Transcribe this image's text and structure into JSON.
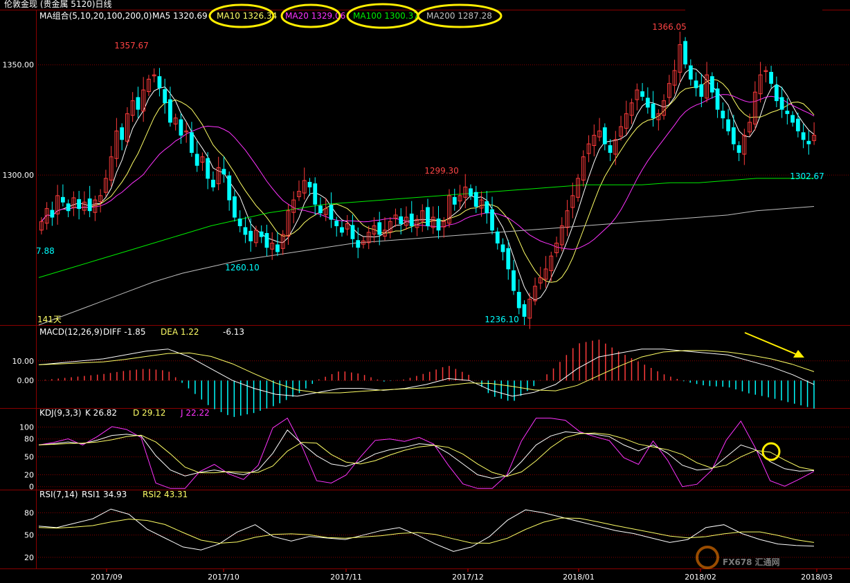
{
  "header": {
    "title": "伦敦金现 (贵金属 5120)日线"
  },
  "legend": {
    "ma_group": "MA组合(5,10,20,100,200,0)",
    "ma5": "MA5 1320.69",
    "ma10": "MA10 1326.34",
    "ma20": "MA20 1329.06",
    "ma100": "MA100 1300.37",
    "ma200": "MA200 1287.28",
    "days": "141天"
  },
  "macd_legend": {
    "name": "MACD(12,26,9)",
    "diff": "DIFF  -1.85",
    "dea": "DEA  1.22",
    "macd": "-6.13"
  },
  "kdj_legend": {
    "name": "KDJ(9,3,3)",
    "k": "K  26.82",
    "d": "D  29.12",
    "j": "J  22.22"
  },
  "rsi_legend": {
    "name": "RSI(7,14)",
    "rsi1": "RSI1  34.93",
    "rsi2": "RSI2  43.31"
  },
  "watermark": "FX678 汇通网",
  "colors": {
    "up": "#ff3b3b",
    "down": "#00ffff",
    "ma5": "#ffffff",
    "ma10": "#ffff66",
    "ma20": "#ff33ff",
    "ma100": "#00ee00",
    "ma200": "#c0c0c0",
    "highlight": "#ffee00",
    "grid": "#8b0000"
  },
  "chart_data": {
    "type": "candlestick",
    "x_ticks": [
      "2017/09",
      "2017/10",
      "2017/11",
      "2017/12",
      "2018/01",
      "2018/02",
      "2018/03"
    ],
    "price_axis": {
      "ticks": [
        "1350.00",
        "1300.00"
      ],
      "ylim": [
        1232,
        1375
      ]
    },
    "annotations": [
      {
        "label": "1357.67",
        "kind": "high"
      },
      {
        "label": "1260.10",
        "kind": "low"
      },
      {
        "label": "1299.30",
        "kind": "high"
      },
      {
        "label": "1236.10",
        "kind": "low"
      },
      {
        "label": "1366.05",
        "kind": "high"
      },
      {
        "label": "1302.67",
        "kind": "low"
      },
      {
        "label": "7.88",
        "kind": "low"
      }
    ],
    "candle_close": [
      1280,
      1286,
      1282,
      1292,
      1289,
      1285,
      1291,
      1286,
      1289,
      1285,
      1290,
      1292,
      1300,
      1310,
      1322,
      1318,
      1330,
      1336,
      1332,
      1341,
      1346,
      1348,
      1342,
      1335,
      1326,
      1328,
      1320,
      1322,
      1312,
      1306,
      1310,
      1300,
      1296,
      1305,
      1302,
      1290,
      1282,
      1278,
      1274,
      1271,
      1276,
      1273,
      1268,
      1270,
      1266,
      1274,
      1285,
      1290,
      1294,
      1299,
      1296,
      1288,
      1284,
      1286,
      1281,
      1278,
      1275,
      1279,
      1272,
      1268,
      1271,
      1275,
      1278,
      1274,
      1276,
      1280,
      1283,
      1279,
      1282,
      1278,
      1281,
      1285,
      1278,
      1282,
      1276,
      1280,
      1292,
      1288,
      1292,
      1296,
      1292,
      1287,
      1290,
      1284,
      1276,
      1270,
      1266,
      1258,
      1248,
      1240,
      1236,
      1244,
      1250,
      1254,
      1258,
      1264,
      1270,
      1278,
      1285,
      1292,
      1300,
      1310,
      1316,
      1320,
      1322,
      1316,
      1312,
      1318,
      1324,
      1330,
      1335,
      1341,
      1338,
      1333,
      1328,
      1330,
      1336,
      1344,
      1350,
      1362,
      1353,
      1346,
      1342,
      1338,
      1348,
      1340,
      1332,
      1328,
      1322,
      1316,
      1312,
      1320,
      1326,
      1340,
      1348,
      1350,
      1344,
      1336,
      1332,
      1330,
      1326,
      1322,
      1318,
      1316,
      1320
    ],
    "ma100": [
      1254,
      1258,
      1262,
      1266,
      1270,
      1274,
      1278,
      1281,
      1284,
      1286,
      1288,
      1289,
      1290,
      1291,
      1292,
      1293,
      1294,
      1295,
      1296,
      1297,
      1297,
      1297,
      1298,
      1298,
      1299,
      1300,
      1300,
      1300
    ],
    "ma200": [
      1232,
      1237,
      1242,
      1247,
      1252,
      1256,
      1259,
      1262,
      1264,
      1266,
      1268,
      1270,
      1271,
      1272,
      1273,
      1274,
      1275,
      1276,
      1277,
      1278,
      1279,
      1280,
      1281,
      1282,
      1283,
      1285,
      1286,
      1287
    ],
    "macd": {
      "ticks": [
        "10.00",
        "0.00"
      ],
      "ylim": [
        -14,
        24
      ],
      "diff": [
        8,
        9,
        10,
        11,
        13,
        15,
        16,
        12,
        6,
        0,
        -4,
        -7,
        -8,
        -6,
        -4,
        -4,
        -5,
        -4,
        -2,
        1,
        0,
        -5,
        -8,
        -6,
        -2,
        6,
        12,
        14,
        16,
        16,
        15,
        14,
        13,
        10,
        7,
        3,
        -2
      ]
    },
    "kdj": {
      "ticks": [
        "100",
        "80",
        "50",
        "20",
        "0"
      ],
      "ylim": [
        -5,
        118
      ],
      "k": [
        70,
        72,
        75,
        72,
        78,
        86,
        88,
        85,
        52,
        28,
        18,
        24,
        28,
        24,
        20,
        28,
        56,
        95,
        72,
        52,
        38,
        34,
        42,
        55,
        62,
        66,
        72,
        70,
        56,
        38,
        20,
        14,
        18,
        42,
        70,
        85,
        92,
        90,
        88,
        84,
        70,
        60,
        70,
        56,
        36,
        28,
        30,
        50,
        70,
        62,
        42,
        30,
        26,
        27
      ]
    },
    "rsi": {
      "ticks": [
        "80",
        "50",
        "20"
      ],
      "ylim": [
        5,
        100
      ],
      "rsi1": [
        62,
        60,
        66,
        72,
        85,
        78,
        58,
        46,
        34,
        30,
        38,
        54,
        64,
        48,
        42,
        48,
        46,
        44,
        50,
        56,
        60,
        50,
        38,
        28,
        34,
        48,
        70,
        84,
        80,
        74,
        68,
        62,
        56,
        52,
        46,
        40,
        44,
        60,
        64,
        52,
        44,
        38,
        36,
        35
      ]
    }
  }
}
